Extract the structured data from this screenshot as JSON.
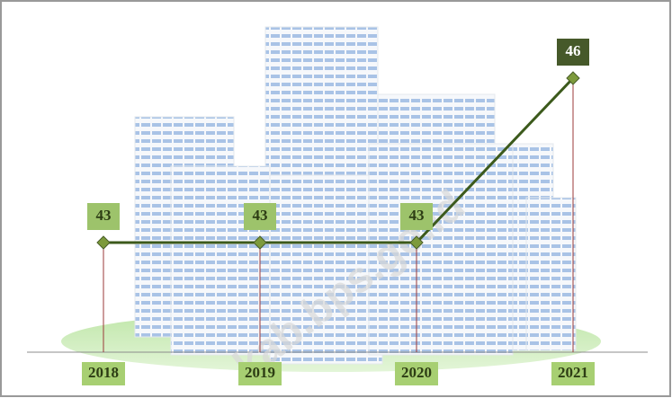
{
  "chart_data": {
    "type": "line",
    "categories": [
      "2018",
      "2019",
      "2020",
      "2021"
    ],
    "values": [
      43,
      43,
      43,
      46
    ],
    "color": "#3c5a1c",
    "watermark": "kab.bps.go.id"
  }
}
